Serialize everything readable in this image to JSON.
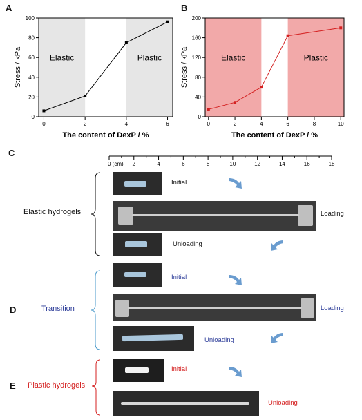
{
  "panels": {
    "A": "A",
    "B": "B",
    "C": "C",
    "D": "D",
    "E": "E"
  },
  "chart_data": [
    {
      "type": "line",
      "panel": "A",
      "xlabel": "The content of DexP / %",
      "ylabel": "Stress / kPa",
      "x": [
        0,
        2,
        4,
        6
      ],
      "values": [
        6,
        21,
        75,
        96
      ],
      "xlim": [
        -0.25,
        6.25
      ],
      "ylim": [
        0,
        100
      ],
      "xticks": [
        "0",
        "2",
        "4",
        "6"
      ],
      "yticks": [
        "0",
        "20",
        "40",
        "60",
        "80",
        "100"
      ],
      "regions": [
        {
          "label": "Elastic",
          "from": -0.25,
          "to": 2
        },
        {
          "label": "Plastic",
          "from": 4,
          "to": 6.25
        }
      ],
      "line_color": "#000000",
      "region_color": "#e6e6e6"
    },
    {
      "type": "line",
      "panel": "B",
      "xlabel": "The content of DexP / %",
      "ylabel": "Stress / kPa",
      "x": [
        0,
        2,
        4,
        6,
        10
      ],
      "values": [
        15,
        29,
        60,
        164,
        180
      ],
      "xlim": [
        -0.25,
        10.25
      ],
      "ylim": [
        0,
        200
      ],
      "xticks": [
        "0",
        "2",
        "4",
        "6",
        "8",
        "10"
      ],
      "yticks": [
        "0",
        "40",
        "80",
        "120",
        "160",
        "200"
      ],
      "regions": [
        {
          "label": "Elastic",
          "from": -0.25,
          "to": 4
        },
        {
          "label": "Plastic",
          "from": 6,
          "to": 10.25
        }
      ],
      "line_color": "#d42020",
      "region_color": "#f2a9a9"
    }
  ],
  "ruler": {
    "ticks": [
      "0 (cm)",
      "2",
      "4",
      "6",
      "8",
      "10",
      "12",
      "14",
      "16",
      "18"
    ]
  },
  "elastic": {
    "group": "Elastic hydrogels",
    "initial": "Initial",
    "loading": "Loading",
    "unloading": "Unloading",
    "color": "#111111"
  },
  "transition": {
    "group": "Transition",
    "initial": "Initial",
    "loading": "Loading",
    "unloading": "Unloading",
    "color": "#2f3f9a"
  },
  "plastic": {
    "group": "Plastic hydrogels",
    "initial": "Initial",
    "unloading": "Unloading",
    "color": "#d42020"
  },
  "colors": {
    "arrow": "#6a9ccf",
    "bracket_transition": "#4a9acb",
    "bracket_plastic": "#d42020"
  }
}
